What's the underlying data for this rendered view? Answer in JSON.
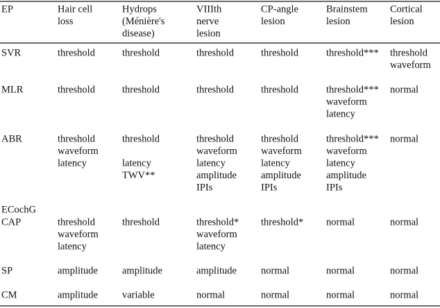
{
  "table": {
    "header": [
      [
        "EP"
      ],
      [
        "Hair cell",
        "loss"
      ],
      [
        "Hydrops",
        "(Ménière's",
        "disease)"
      ],
      [
        "VIIIth",
        "nerve",
        "lesion"
      ],
      [
        "CP-angle",
        "lesion"
      ],
      [
        "Brainstem",
        "lesion"
      ],
      [
        "Cortical",
        "lesion"
      ]
    ],
    "rows": [
      {
        "label": "SVR",
        "cells": [
          [
            "threshold"
          ],
          [
            "threshold"
          ],
          [
            "threshold"
          ],
          [
            "threshold"
          ],
          [
            "threshold***"
          ],
          [
            "threshold",
            "waveform"
          ]
        ]
      },
      {
        "label": "MLR",
        "cells": [
          [
            "threshold"
          ],
          [
            "threshold"
          ],
          [
            "threshold"
          ],
          [
            "threshold"
          ],
          [
            "threshold***",
            "waveform",
            "latency"
          ],
          [
            "normal"
          ]
        ]
      },
      {
        "label": "ABR",
        "cells": [
          [
            "threshold",
            "waveform",
            "latency"
          ],
          [
            "threshold",
            "latency",
            "TWV**"
          ],
          [
            "threshold",
            "waveform",
            "latency",
            "amplitude",
            "IPIs"
          ],
          [
            "threshold",
            "waveform",
            "latency",
            "amplitude",
            "IPIs"
          ],
          [
            "threshold***",
            "waveform",
            "latency",
            "amplitude",
            "IPIs"
          ],
          [
            "normal"
          ]
        ]
      },
      {
        "label": "ECochG"
      },
      {
        "label": "CAP",
        "cells": [
          [
            "threshold",
            "waveform",
            "latency"
          ],
          [
            "threshold"
          ],
          [
            "threshold*",
            "waveform",
            "latency"
          ],
          [
            "threshold*"
          ],
          [
            "normal"
          ],
          [
            "normal"
          ]
        ]
      },
      {
        "label": "SP",
        "cells": [
          [
            "amplitude"
          ],
          [
            "amplitude"
          ],
          [
            "amplitude"
          ],
          [
            "normal"
          ],
          [
            "normal"
          ],
          [
            "normal"
          ]
        ]
      },
      {
        "label": "CM",
        "cells": [
          [
            "amplitude"
          ],
          [
            "variable"
          ],
          [
            "normal"
          ],
          [
            "normal"
          ],
          [
            "normal"
          ],
          [
            "normal"
          ]
        ]
      }
    ]
  }
}
